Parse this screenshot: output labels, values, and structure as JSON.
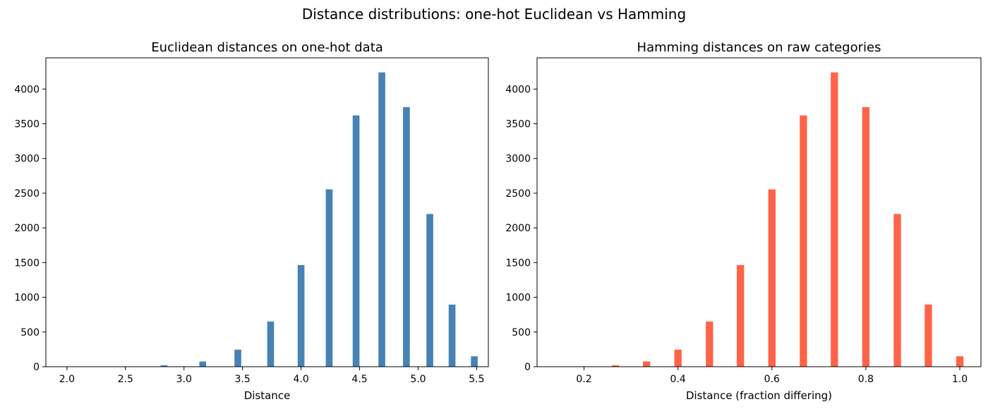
{
  "figure": {
    "suptitle": "Distance distributions: one-hot Euclidean vs Hamming"
  },
  "chart_data": [
    {
      "type": "bar",
      "title": "Euclidean distances on one-hot data",
      "xlabel": "Distance",
      "ylabel": "",
      "color": "#4682b4",
      "xlim": [
        1.82,
        5.6
      ],
      "ylim": [
        0,
        4450
      ],
      "xticks": [
        2.0,
        2.5,
        3.0,
        3.5,
        4.0,
        4.5,
        5.0,
        5.5
      ],
      "xtick_labels": [
        "2.0",
        "2.5",
        "3.0",
        "3.5",
        "4.0",
        "4.5",
        "5.0",
        "5.5"
      ],
      "yticks": [
        0,
        500,
        1000,
        1500,
        2000,
        2500,
        3000,
        3500,
        4000
      ],
      "ytick_labels": [
        "0",
        "500",
        "1000",
        "1500",
        "2000",
        "2500",
        "3000",
        "3500",
        "4000"
      ],
      "bin_width": 0.058,
      "x": [
        2.0,
        2.45,
        2.83,
        3.16,
        3.46,
        3.74,
        4.0,
        4.24,
        4.47,
        4.69,
        4.9,
        5.1,
        5.29,
        5.48
      ],
      "values": [
        1,
        2,
        20,
        75,
        245,
        650,
        1465,
        2555,
        3620,
        4240,
        3740,
        2200,
        895,
        150
      ]
    },
    {
      "type": "bar",
      "title": "Hamming distances on raw categories",
      "xlabel": "Distance (fraction differing)",
      "ylabel": "",
      "color": "#ff6347",
      "xlim": [
        0.1,
        1.045
      ],
      "ylim": [
        0,
        4450
      ],
      "xticks": [
        0.2,
        0.4,
        0.6,
        0.8,
        1.0
      ],
      "xtick_labels": [
        "0.2",
        "0.4",
        "0.6",
        "0.8",
        "1.0"
      ],
      "yticks": [
        0,
        500,
        1000,
        1500,
        2000,
        2500,
        3000,
        3500,
        4000
      ],
      "ytick_labels": [
        "0",
        "500",
        "1000",
        "1500",
        "2000",
        "2500",
        "3000",
        "3500",
        "4000"
      ],
      "bin_width": 0.0155,
      "x": [
        0.133,
        0.2,
        0.267,
        0.333,
        0.4,
        0.467,
        0.533,
        0.6,
        0.667,
        0.733,
        0.8,
        0.867,
        0.933,
        1.0
      ],
      "values": [
        1,
        2,
        20,
        75,
        245,
        650,
        1465,
        2555,
        3620,
        4240,
        3740,
        2200,
        895,
        150
      ]
    }
  ]
}
